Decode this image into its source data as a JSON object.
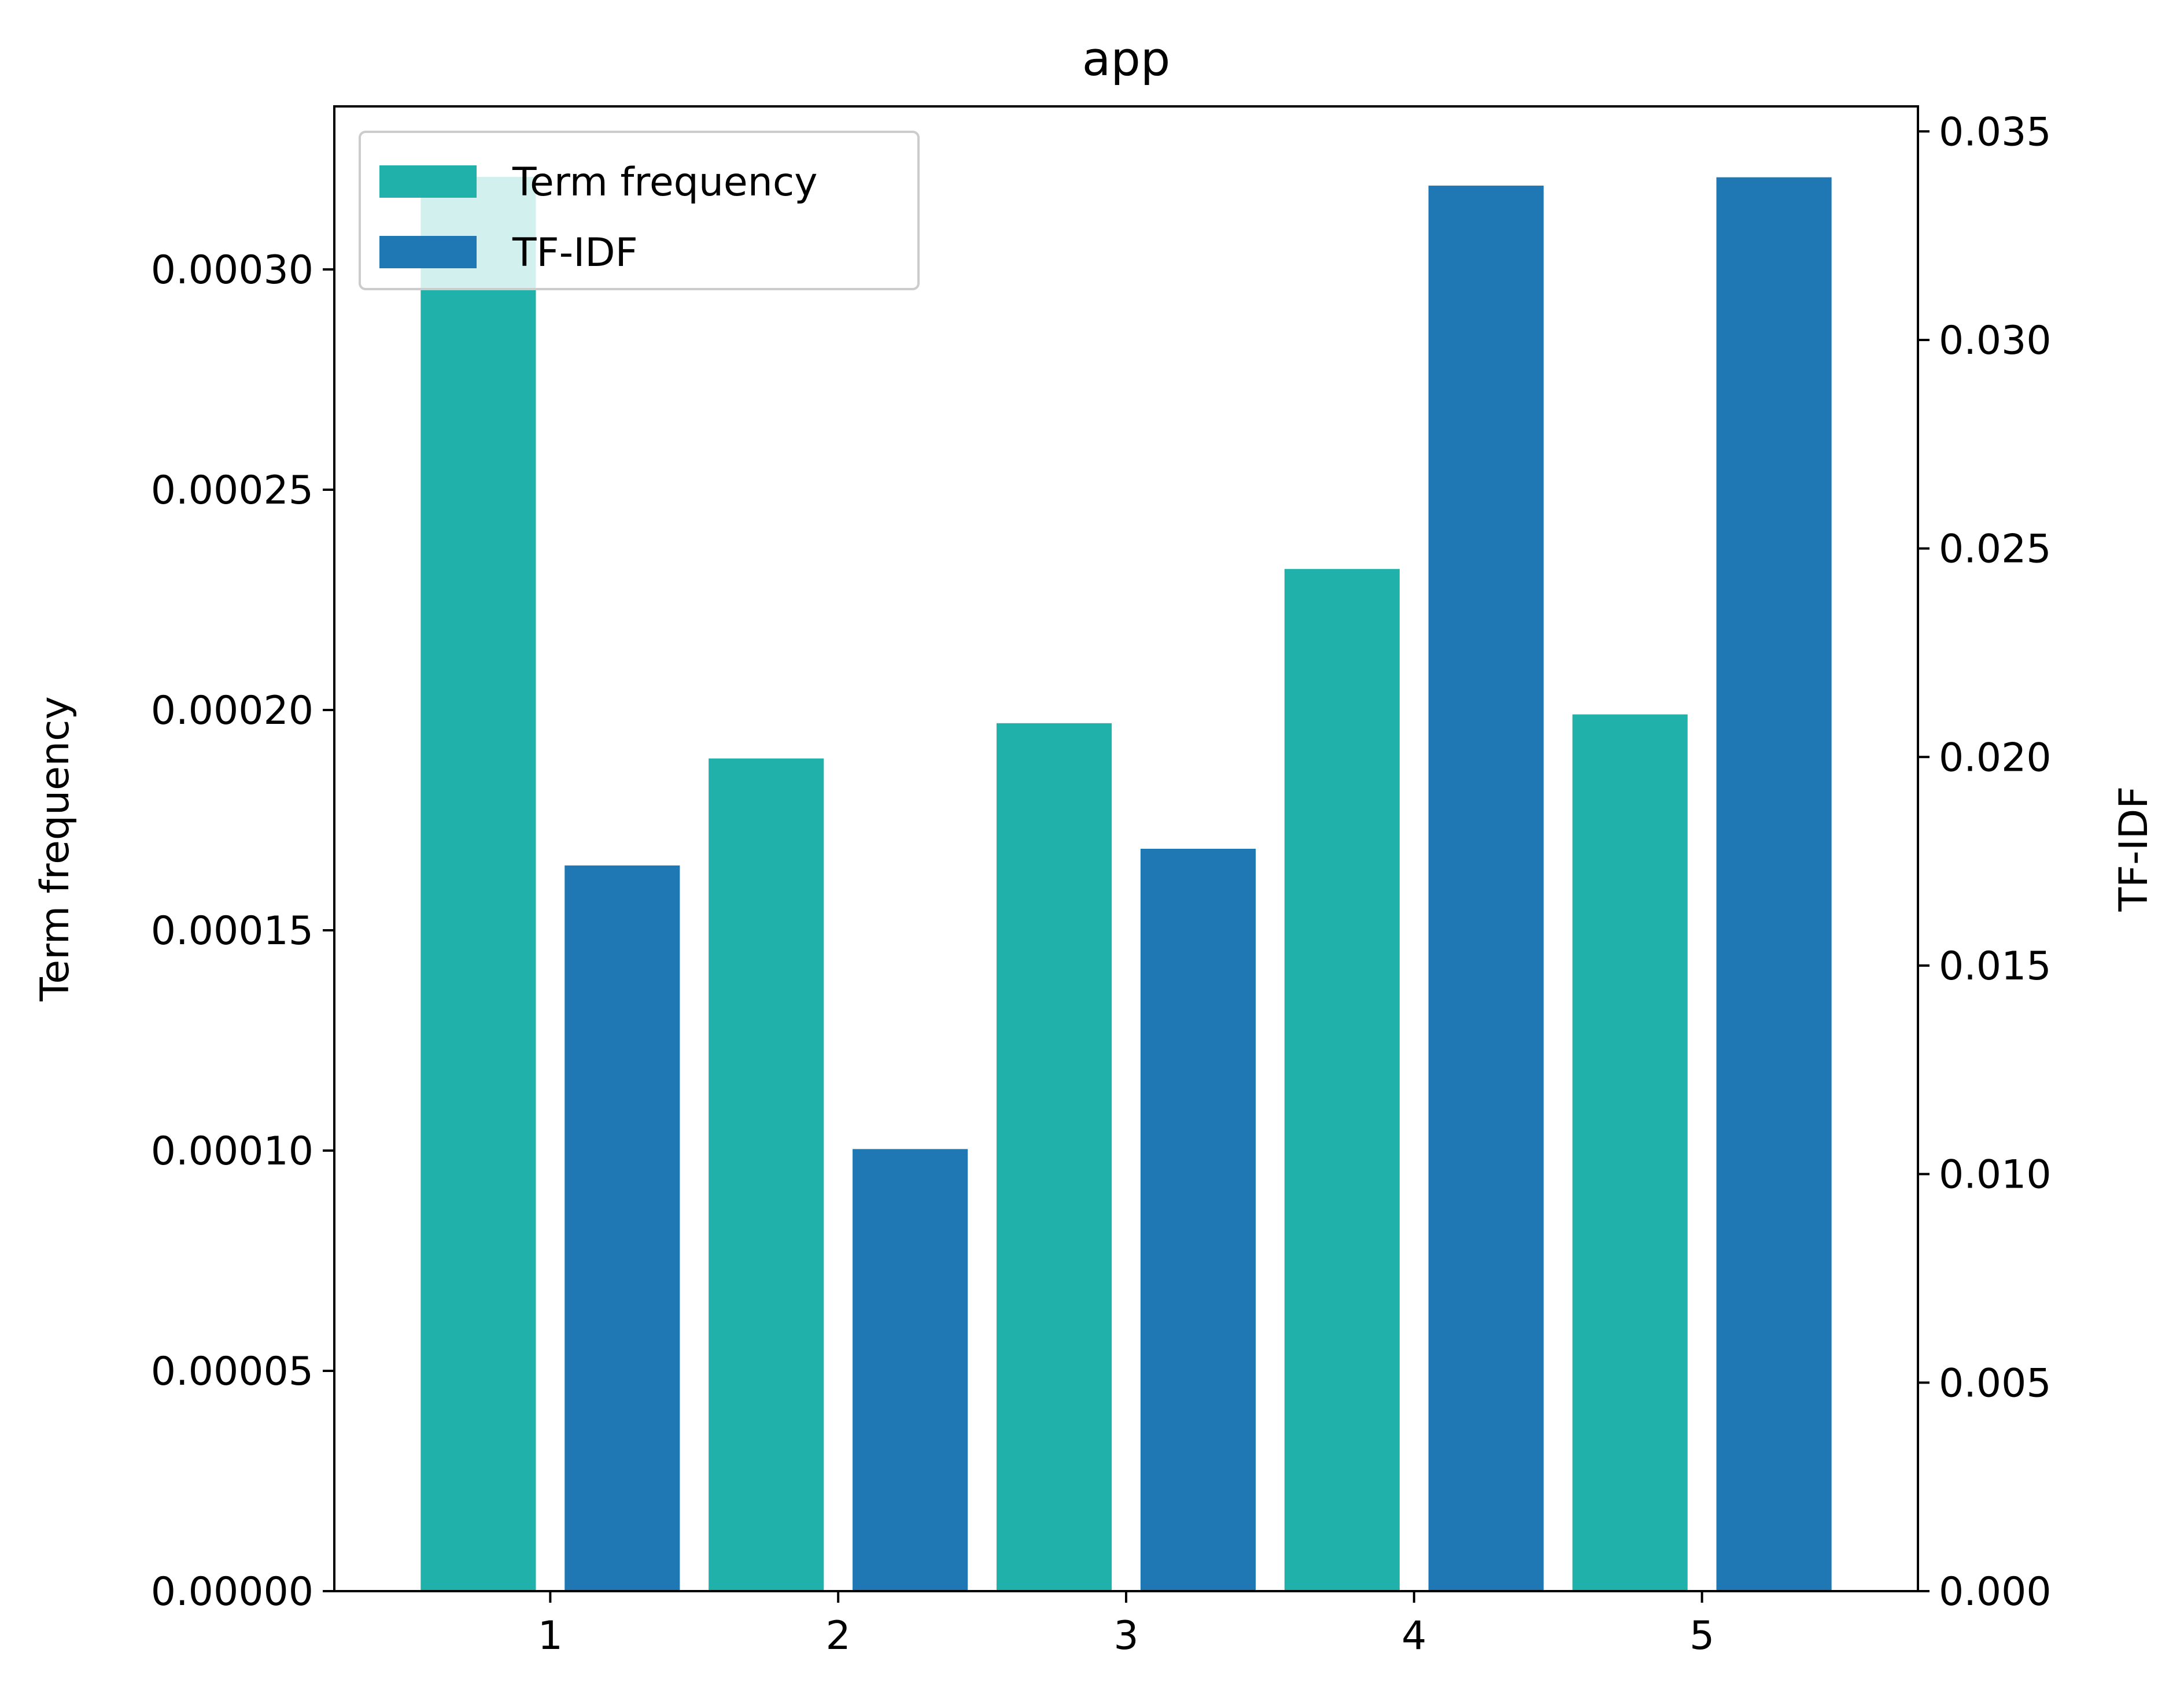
{
  "chart_data": {
    "type": "bar",
    "title": "app",
    "categories": [
      "1",
      "2",
      "3",
      "4",
      "5"
    ],
    "series": [
      {
        "name": "Term frequency",
        "axis": "left",
        "color": "#20b2aa",
        "values": [
          0.000321,
          0.000189,
          0.000197,
          0.000232,
          0.000199
        ]
      },
      {
        "name": "TF-IDF",
        "axis": "right",
        "color": "#1f77b4",
        "values": [
          0.0174,
          0.0106,
          0.0178,
          0.0337,
          0.0339
        ]
      }
    ],
    "y_left": {
      "label": "Term frequency",
      "ylim": [
        0,
        0.000337
      ],
      "ticks": [
        0,
        5e-05,
        0.0001,
        0.00015,
        0.0002,
        0.00025,
        0.0003
      ],
      "tick_labels": [
        "0.00000",
        "0.00005",
        "0.00010",
        "0.00015",
        "0.00020",
        "0.00025",
        "0.00030"
      ]
    },
    "y_right": {
      "label": "TF-IDF",
      "ylim": [
        0,
        0.0356
      ],
      "ticks": [
        0,
        0.005,
        0.01,
        0.015,
        0.02,
        0.025,
        0.03,
        0.035
      ],
      "tick_labels": [
        "0.000",
        "0.005",
        "0.010",
        "0.015",
        "0.020",
        "0.025",
        "0.030",
        "0.035"
      ]
    },
    "x": {
      "label": "",
      "tick_labels": [
        "1",
        "2",
        "3",
        "4",
        "5"
      ]
    },
    "legend": {
      "position": "upper-left",
      "entries": [
        "Term frequency",
        "TF-IDF"
      ]
    },
    "grid": false
  }
}
